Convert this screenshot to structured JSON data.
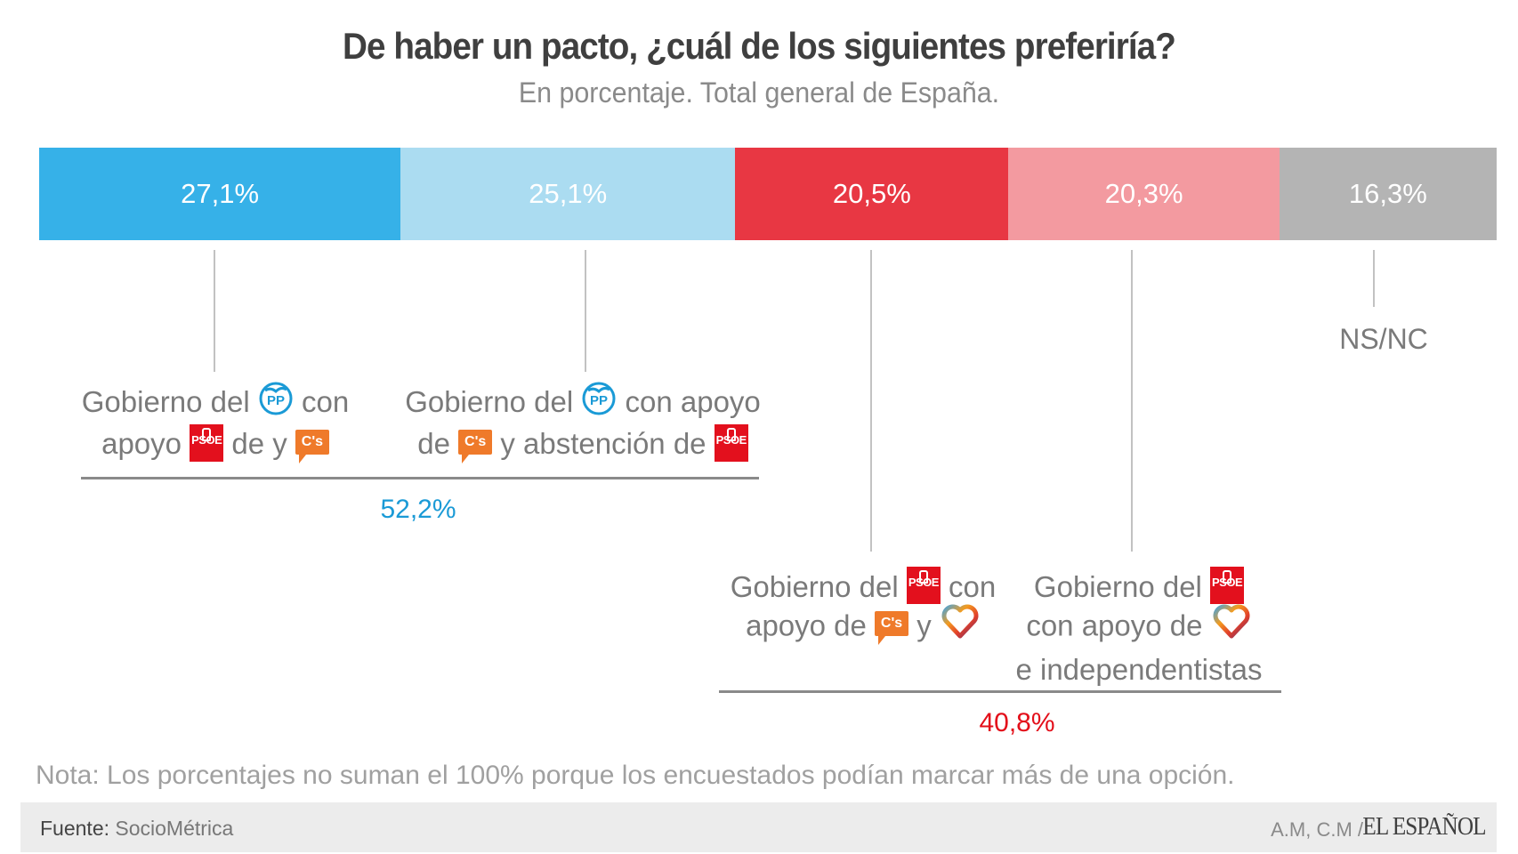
{
  "chart_data": {
    "type": "bar",
    "orientation": "horizontal-stacked",
    "title": "De haber un pacto, ¿cuál de los siguientes preferiría?",
    "subtitle": "En porcentaje. Total general de España.",
    "xlabel": "",
    "ylabel": "",
    "categories": [
      "Gobierno del PP con apoyo de PSOE y C's",
      "Gobierno del PP con apoyo de C's y abstención de PSOE",
      "Gobierno del PSOE con apoyo de C's y Podemos",
      "Gobierno del PSOE con apoyo de Podemos e independentistas",
      "NS/NC"
    ],
    "values": [
      27.1,
      25.1,
      20.5,
      20.3,
      16.3
    ],
    "value_labels": [
      "27,1%",
      "25,1%",
      "20,5%",
      "20,3%",
      "16,3%"
    ],
    "colors": [
      "#36b1e8",
      "#abdcf1",
      "#e83743",
      "#f39aa0",
      "#b4b4b4"
    ],
    "groups": [
      {
        "members": [
          0,
          1
        ],
        "total": 52.2,
        "total_label": "52,2%",
        "color": "#1a9ad6"
      },
      {
        "members": [
          2,
          3
        ],
        "total": 40.8,
        "total_label": "40,8%",
        "color": "#e30f1a"
      }
    ],
    "grid": false,
    "legend": "none"
  },
  "labels": {
    "opt0": {
      "line1_a": "Gobierno del",
      "line1_b": "con",
      "line2_a": "apoyo",
      "line2_b": "de y"
    },
    "opt1": {
      "line1_a": "Gobierno del",
      "line1_b": "con apoyo",
      "line2_a": "de",
      "line2_b": "y abstención de"
    },
    "opt2": {
      "line1_a": "Gobierno del",
      "line1_b": "con",
      "line2_a": "apoyo de",
      "line2_b": "y"
    },
    "opt3": {
      "line1_a": "Gobierno del",
      "line2_a": "con apoyo de",
      "line3": "e independentistas"
    },
    "opt4": {
      "line1": "NS/NC"
    }
  },
  "icons": {
    "pp_text": "PP",
    "psoe_text": "PSOE",
    "cs_text": "C's"
  },
  "note": "Nota: Los porcentajes no suman el 100% porque los encuestados podían marcar más de una opción.",
  "footer": {
    "source_label": "Fuente:",
    "source_value": "SocioMétrica",
    "credit": "A.M, C.M /",
    "brand": "EL ESPAÑOL"
  }
}
